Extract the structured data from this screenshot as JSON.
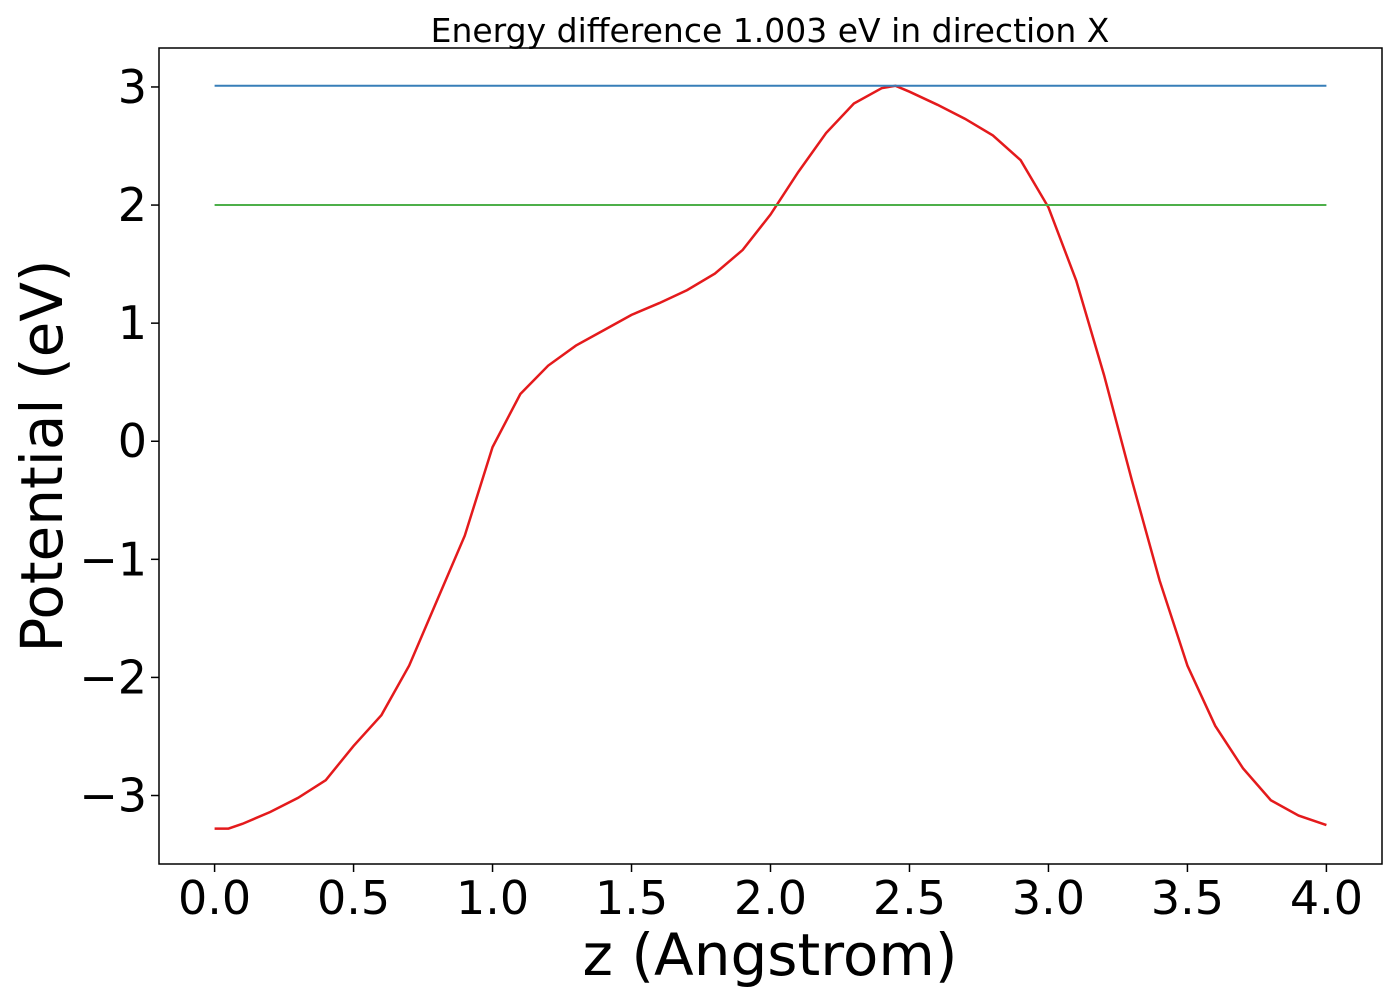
{
  "chart_data": {
    "type": "line",
    "title": "Energy difference 1.003 eV in direction X",
    "xlabel": "z (Angstrom)",
    "ylabel": "Potential (eV)",
    "xlim": [
      -0.2,
      4.2
    ],
    "ylim": [
      -3.58,
      3.33
    ],
    "xticks": [
      {
        "value": 0,
        "label": "0.0"
      },
      {
        "value": 0.5,
        "label": "0.5"
      },
      {
        "value": 1,
        "label": "1.0"
      },
      {
        "value": 1.5,
        "label": "1.5"
      },
      {
        "value": 2,
        "label": "2.0"
      },
      {
        "value": 2.5,
        "label": "2.5"
      },
      {
        "value": 3,
        "label": "3.0"
      },
      {
        "value": 3.5,
        "label": "3.5"
      },
      {
        "value": 4,
        "label": "4.0"
      }
    ],
    "yticks": [
      {
        "value": -3,
        "label": "−3"
      },
      {
        "value": -2,
        "label": "−2"
      },
      {
        "value": -1,
        "label": "−1"
      },
      0,
      1,
      2,
      3
    ],
    "series": [
      {
        "color": "#e41a1c",
        "x": [
          0,
          0.05,
          0.1,
          0.2,
          0.3,
          0.4,
          0.5,
          0.6,
          0.7,
          0.8,
          0.9,
          1.0,
          1.1,
          1.2,
          1.3,
          1.4,
          1.5,
          1.6,
          1.7,
          1.8,
          1.9,
          2.0,
          2.1,
          2.2,
          2.3,
          2.4,
          2.45,
          2.5,
          2.6,
          2.7,
          2.8,
          2.9,
          3.0,
          3.1,
          3.2,
          3.3,
          3.4,
          3.5,
          3.6,
          3.7,
          3.8,
          3.9,
          4.0
        ],
        "values": [
          -3.28,
          -3.28,
          -3.24,
          -3.14,
          -3.02,
          -2.87,
          -2.58,
          -2.32,
          -1.9,
          -1.35,
          -0.8,
          -0.05,
          0.4,
          0.64,
          0.81,
          0.94,
          1.07,
          1.17,
          1.28,
          1.42,
          1.62,
          1.92,
          2.28,
          2.61,
          2.86,
          2.99,
          3.01,
          2.96,
          2.85,
          2.73,
          2.59,
          2.38,
          1.98,
          1.36,
          0.56,
          -0.33,
          -1.18,
          -1.9,
          -2.41,
          -2.77,
          -3.04,
          -3.17,
          -3.25
        ]
      },
      {
        "color": "#377eb8",
        "x": [
          0,
          4
        ],
        "values": [
          3.01,
          3.01
        ]
      },
      {
        "color": "#4daf4a",
        "x": [
          0,
          4
        ],
        "values": [
          2.0,
          2.0
        ]
      }
    ]
  }
}
